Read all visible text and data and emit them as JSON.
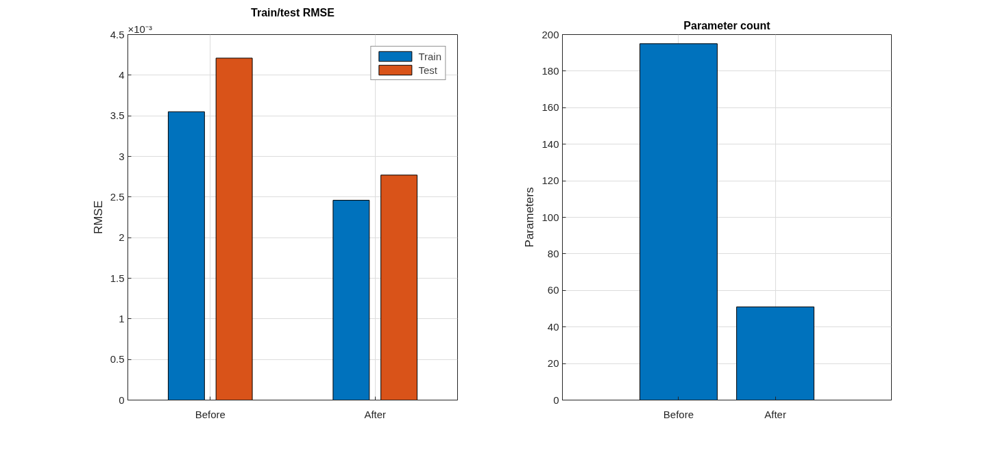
{
  "chart_data": [
    {
      "type": "bar",
      "title": "Train/test RMSE",
      "ylabel": "RMSE",
      "categories": [
        "Before",
        "After"
      ],
      "series": [
        {
          "name": "Train",
          "color": "#0072bd",
          "values": [
            3.55,
            2.46
          ]
        },
        {
          "name": "Test",
          "color": "#d95319",
          "values": [
            4.21,
            2.77
          ]
        }
      ],
      "ylim": [
        0,
        4.5
      ],
      "yticks": [
        0,
        0.5,
        1,
        1.5,
        2,
        2.5,
        3,
        3.5,
        4,
        4.5
      ],
      "annotations": [
        "×10⁻³"
      ],
      "grid": true,
      "legend": "top right"
    },
    {
      "type": "bar",
      "title": "Parameter count",
      "ylabel": "Parameters",
      "categories": [
        "Before",
        "After"
      ],
      "series": [
        {
          "color": "#0072bd",
          "values": [
            195,
            51
          ]
        }
      ],
      "ylim": [
        0,
        200
      ],
      "yticks": [
        0,
        20,
        40,
        60,
        80,
        100,
        120,
        140,
        160,
        180,
        200
      ],
      "grid": true
    }
  ]
}
